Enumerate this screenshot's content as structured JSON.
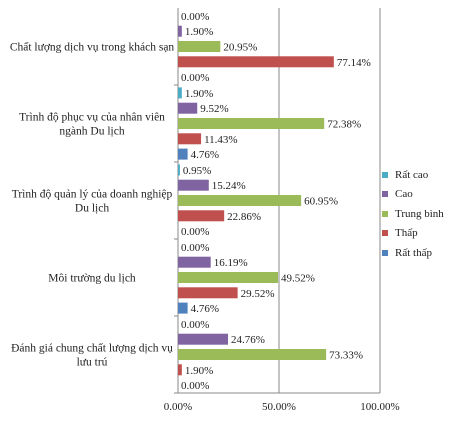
{
  "chart_data": {
    "type": "bar",
    "orientation": "horizontal",
    "categories": [
      {
        "lines": [
          "Chất lượng dịch vụ trong khách sạn"
        ]
      },
      {
        "lines": [
          "Trình độ phục vụ của nhân viên",
          "ngành Du lịch"
        ]
      },
      {
        "lines": [
          "Trình độ quản lý của doanh nghiệp",
          "Du lịch"
        ]
      },
      {
        "lines": [
          "Môi trường du lịch"
        ]
      },
      {
        "lines": [
          "Đánh giá chung chất lượng dịch vụ",
          "lưu trú"
        ]
      }
    ],
    "series": [
      {
        "name": "Rất cao",
        "color": "#4bacc6",
        "values": [
          0.0,
          1.9,
          0.95,
          0.0,
          0.0
        ],
        "labels": [
          "0.00%",
          "1.90%",
          "0.95%",
          "0.00%",
          "0.00%"
        ]
      },
      {
        "name": "Cao",
        "color": "#8064a2",
        "values": [
          1.9,
          9.52,
          15.24,
          16.19,
          24.76
        ],
        "labels": [
          "1.90%",
          "9.52%",
          "15.24%",
          "16.19%",
          "24.76%"
        ]
      },
      {
        "name": "Trung bình",
        "color": "#9bbb59",
        "values": [
          20.95,
          72.38,
          60.95,
          49.52,
          73.33
        ],
        "labels": [
          "20.95%",
          "72.38%",
          "60.95%",
          "49.52%",
          "73.33%"
        ]
      },
      {
        "name": "Thấp",
        "color": "#c0504d",
        "values": [
          77.14,
          11.43,
          22.86,
          29.52,
          1.9
        ],
        "labels": [
          "77.14%",
          "11.43%",
          "22.86%",
          "29.52%",
          "1.90%"
        ]
      },
      {
        "name": "Rất thấp",
        "color": "#4f81bd",
        "values": [
          0.0,
          4.76,
          0.0,
          4.76,
          0.0
        ],
        "labels": [
          "0.00%",
          "4.76%",
          "0.00%",
          "4.76%",
          "0.00%"
        ]
      }
    ],
    "xlim": [
      0,
      100
    ],
    "xticks": [
      0,
      50,
      100
    ],
    "xtick_labels": [
      "0.00%",
      "50.00%",
      "100.00%"
    ],
    "gridlines": "vertical",
    "legend_position": "right",
    "title": "",
    "xlabel": "",
    "ylabel": ""
  }
}
